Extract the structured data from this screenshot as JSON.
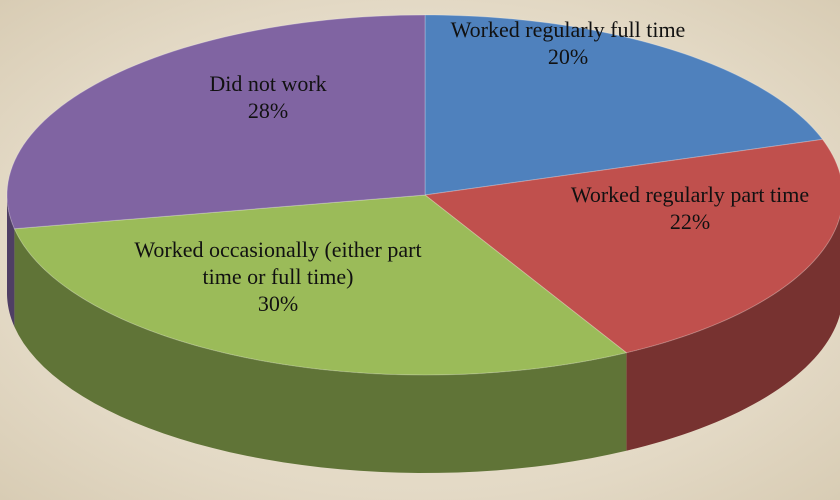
{
  "chart_data": {
    "type": "pie",
    "categories": [
      "Worked regularly full time",
      "Worked regularly part time",
      "Worked occasionally (either part time or full time)",
      "Did not work"
    ],
    "values": [
      20,
      22,
      30,
      28
    ],
    "value_labels": [
      "20%",
      "22%",
      "30%",
      "28%"
    ],
    "colors": [
      "#4f81bd",
      "#c0504d",
      "#9bbb59",
      "#8064a2"
    ]
  }
}
